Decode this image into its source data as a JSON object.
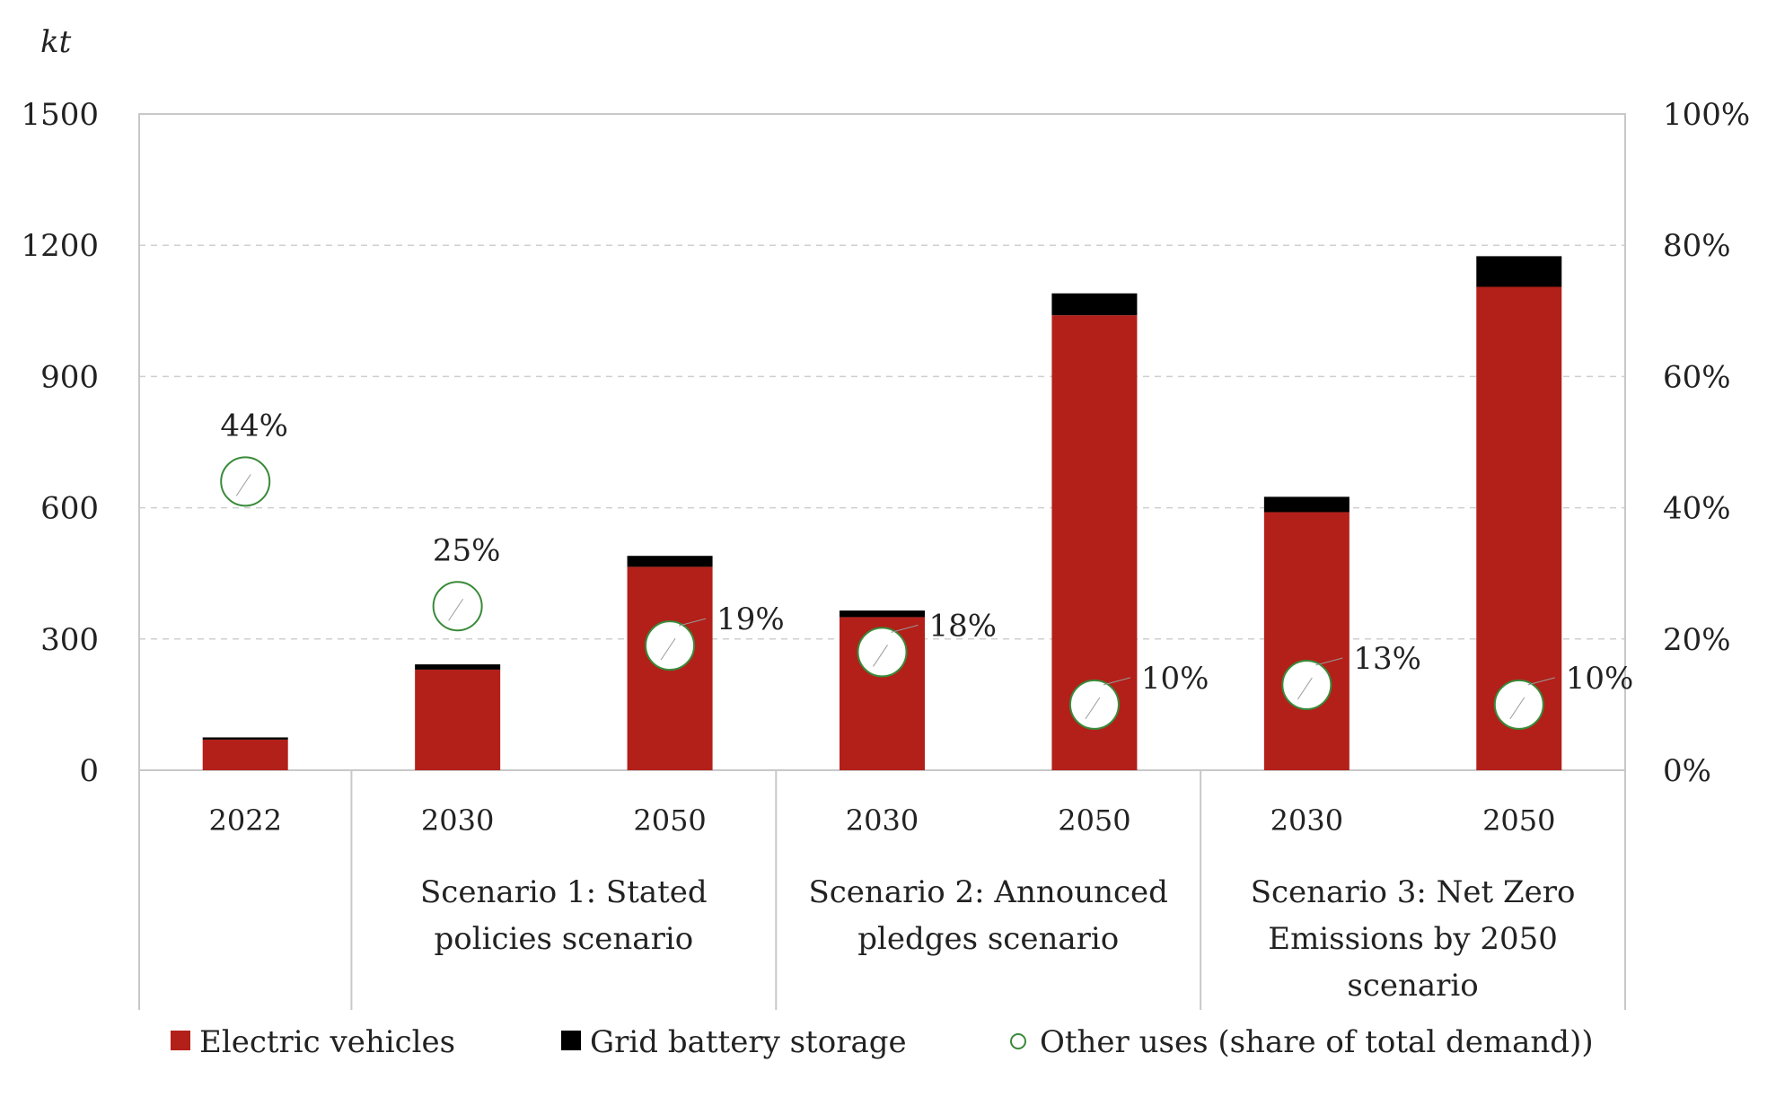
{
  "chart_data": {
    "type": "bar",
    "stacked": true,
    "unit_label": "kt",
    "title": "",
    "xlabel": "",
    "ylabel": "kt",
    "ylim": [
      0,
      1500
    ],
    "y_ticks": [
      0,
      300,
      600,
      900,
      1200,
      1500
    ],
    "y2lim": [
      0,
      100
    ],
    "y2_ticks": [
      "0%",
      "20%",
      "40%",
      "60%",
      "80%",
      "100%"
    ],
    "grid": "horizontal dashed",
    "categories": [
      "2022",
      "2030",
      "2050",
      "2030",
      "2050",
      "2030",
      "2050"
    ],
    "groups": [
      {
        "label_lines": [
          ""
        ],
        "span": [
          0,
          0
        ]
      },
      {
        "label_lines": [
          "Scenario 1:  Stated",
          "policies scenario"
        ],
        "span": [
          1,
          2
        ]
      },
      {
        "label_lines": [
          "Scenario 2: Announced",
          "pledges scenario"
        ],
        "span": [
          3,
          4
        ]
      },
      {
        "label_lines": [
          "Scenario 3: Net Zero",
          "Emissions by 2050",
          "scenario"
        ],
        "span": [
          5,
          6
        ]
      }
    ],
    "series": [
      {
        "name": "Electric vehicles",
        "color": "#b22019",
        "values": [
          70,
          230,
          465,
          350,
          1040,
          590,
          1105
        ]
      },
      {
        "name": "Grid battery storage",
        "color": "#000000",
        "values": [
          5,
          12,
          25,
          15,
          50,
          35,
          70
        ]
      }
    ],
    "share_series": {
      "name": "Other uses (share of total demand))",
      "marker_color": "#3a8a3a",
      "values": [
        44,
        25,
        19,
        18,
        10,
        13,
        10
      ],
      "labels": [
        "44%",
        "25%",
        "19%",
        "18%",
        "10%",
        "13%",
        "10%"
      ]
    },
    "legend_position": "bottom"
  }
}
